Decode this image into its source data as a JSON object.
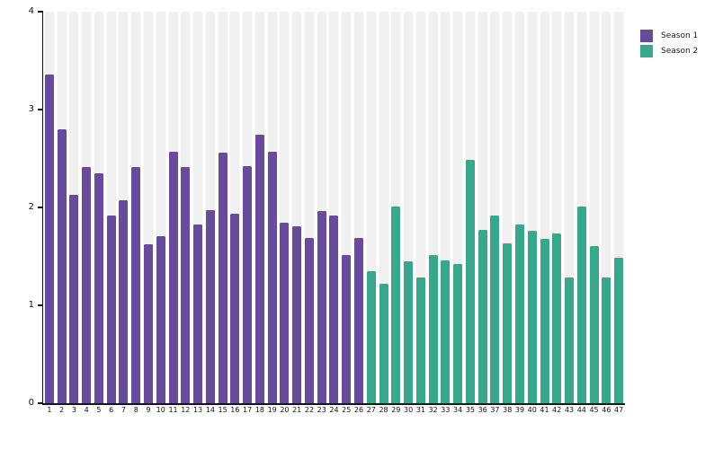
{
  "chart_data": {
    "type": "bar",
    "title": "",
    "xlabel": "",
    "ylabel": "",
    "ylim": [
      0,
      4
    ],
    "yticks": [
      0,
      1,
      2,
      3,
      4
    ],
    "grid": false,
    "background_stripes": true,
    "legend_position": "top-right",
    "categories": [
      "1",
      "2",
      "3",
      "4",
      "5",
      "6",
      "7",
      "8",
      "9",
      "10",
      "11",
      "12",
      "13",
      "14",
      "15",
      "16",
      "17",
      "18",
      "19",
      "20",
      "21",
      "22",
      "23",
      "24",
      "25",
      "26",
      "27",
      "28",
      "29",
      "30",
      "31",
      "32",
      "33",
      "34",
      "35",
      "36",
      "37",
      "38",
      "39",
      "40",
      "41",
      "42",
      "43",
      "44",
      "45",
      "46",
      "47"
    ],
    "series": [
      {
        "name": "Season 1",
        "color": "#684c9c",
        "values": [
          3.36,
          2.8,
          2.13,
          2.41,
          2.35,
          1.92,
          2.07,
          2.41,
          1.62,
          1.71,
          2.57,
          2.41,
          1.83,
          1.97,
          2.56,
          1.94,
          2.42,
          2.74,
          2.57,
          1.84,
          1.81,
          1.69,
          1.96,
          1.92,
          1.51,
          1.69
        ]
      },
      {
        "name": "Season 2",
        "color": "#38a78c",
        "values": [
          1.35,
          1.22,
          2.01,
          1.45,
          1.28,
          1.51,
          1.46,
          1.42,
          2.49,
          1.77,
          1.92,
          1.63,
          1.83,
          1.76,
          1.68,
          1.73,
          1.28,
          2.01,
          1.61,
          1.28,
          1.49
        ]
      }
    ]
  },
  "style": {
    "stripe_color": "#f0f0f0",
    "axis_color": "#141414",
    "tick_label_color": "#141414",
    "background_color": "#ffffff"
  }
}
